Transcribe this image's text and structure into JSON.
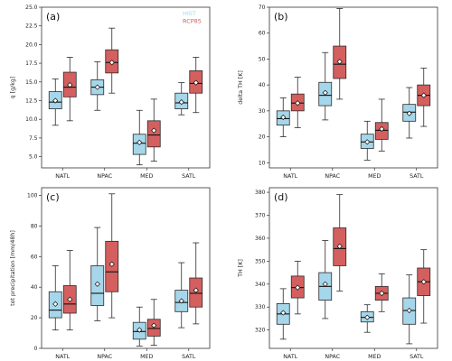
{
  "colors": {
    "hist": "#a6d6ea",
    "rcp": "#d45f5f",
    "line": "#2b2b2b"
  },
  "chart_data": [
    {
      "type": "box",
      "panel": "(a)",
      "ylabel": "q [g/kg]",
      "ylim": [
        3.5,
        25
      ],
      "yticks": [
        5.0,
        7.5,
        10.0,
        12.5,
        15.0,
        17.5,
        20.0,
        22.5,
        25.0
      ],
      "tick_decimals": 1,
      "categories": [
        "NATL",
        "NPAC",
        "MED",
        "SATL"
      ],
      "legend": [
        {
          "name": "HIST"
        },
        {
          "name": "RCP85"
        }
      ],
      "series": [
        {
          "name": "HIST",
          "color_key": "hist",
          "boxes": [
            {
              "whislo": 9.2,
              "q1": 11.4,
              "med": 12.3,
              "q3": 13.7,
              "whishi": 15.4,
              "mean": 12.5
            },
            {
              "whislo": 11.2,
              "q1": 13.3,
              "med": 14.3,
              "q3": 15.3,
              "whishi": 17.7,
              "mean": 14.3
            },
            {
              "whislo": 3.9,
              "q1": 5.3,
              "med": 6.8,
              "q3": 8.0,
              "whishi": 11.2,
              "mean": 6.9
            },
            {
              "whislo": 10.6,
              "q1": 11.4,
              "med": 12.2,
              "q3": 13.5,
              "whishi": 14.9,
              "mean": 12.3
            }
          ]
        },
        {
          "name": "RCP85",
          "color_key": "rcp",
          "boxes": [
            {
              "whislo": 9.8,
              "q1": 13.0,
              "med": 14.3,
              "q3": 16.3,
              "whishi": 18.3,
              "mean": 14.6
            },
            {
              "whislo": 13.5,
              "q1": 16.2,
              "med": 17.6,
              "q3": 19.3,
              "whishi": 22.2,
              "mean": 17.6
            },
            {
              "whislo": 4.4,
              "q1": 6.3,
              "med": 7.9,
              "q3": 9.8,
              "whishi": 12.7,
              "mean": 8.5
            },
            {
              "whislo": 10.9,
              "q1": 13.5,
              "med": 14.8,
              "q3": 16.5,
              "whishi": 18.3,
              "mean": 14.9
            }
          ]
        }
      ]
    },
    {
      "type": "box",
      "panel": "(b)",
      "ylabel": "delta TH [K]",
      "ylim": [
        8,
        70
      ],
      "yticks": [
        10,
        20,
        30,
        40,
        50,
        60,
        70
      ],
      "tick_decimals": 0,
      "categories": [
        "NATL",
        "NPAC",
        "MED",
        "SATL"
      ],
      "series": [
        {
          "name": "HIST",
          "color_key": "hist",
          "boxes": [
            {
              "whislo": 20.0,
              "q1": 24.5,
              "med": 27.0,
              "q3": 30.0,
              "whishi": 35.0,
              "mean": 27.5
            },
            {
              "whislo": 26.5,
              "q1": 32.0,
              "med": 36.0,
              "q3": 41.0,
              "whishi": 52.5,
              "mean": 37.0
            },
            {
              "whislo": 11.0,
              "q1": 15.5,
              "med": 18.0,
              "q3": 21.0,
              "whishi": 26.0,
              "mean": 18.0
            },
            {
              "whislo": 19.5,
              "q1": 26.0,
              "med": 29.5,
              "q3": 32.5,
              "whishi": 39.0,
              "mean": 29.0
            }
          ]
        },
        {
          "name": "RCP85",
          "color_key": "rcp",
          "boxes": [
            {
              "whislo": 23.5,
              "q1": 30.0,
              "med": 33.0,
              "q3": 36.5,
              "whishi": 43.0,
              "mean": 33.0
            },
            {
              "whislo": 34.5,
              "q1": 42.5,
              "med": 48.0,
              "q3": 55.0,
              "whishi": 69.5,
              "mean": 49.0
            },
            {
              "whislo": 14.5,
              "q1": 19.0,
              "med": 22.5,
              "q3": 25.5,
              "whishi": 34.5,
              "mean": 23.0
            },
            {
              "whislo": 24.0,
              "q1": 32.0,
              "med": 36.0,
              "q3": 40.0,
              "whishi": 46.5,
              "mean": 36.0
            }
          ]
        }
      ]
    },
    {
      "type": "box",
      "panel": "(c)",
      "ylabel": "tot precipitation [mm/48h]",
      "ylim": [
        0,
        105
      ],
      "yticks": [
        0,
        20,
        40,
        60,
        80,
        100
      ],
      "tick_decimals": 0,
      "categories": [
        "NATL",
        "NPAC",
        "MED",
        "SATL"
      ],
      "series": [
        {
          "name": "HIST",
          "color_key": "hist",
          "boxes": [
            {
              "whislo": 12.0,
              "q1": 20.0,
              "med": 25.0,
              "q3": 37.0,
              "whishi": 54.0,
              "mean": 29.0
            },
            {
              "whislo": 18.0,
              "q1": 28.0,
              "med": 36.0,
              "q3": 54.0,
              "whishi": 79.0,
              "mean": 42.0
            },
            {
              "whislo": 1.5,
              "q1": 6.0,
              "med": 11.0,
              "q3": 17.0,
              "whishi": 27.0,
              "mean": 12.0
            },
            {
              "whislo": 13.5,
              "q1": 24.0,
              "med": 30.0,
              "q3": 38.0,
              "whishi": 56.0,
              "mean": 31.0
            }
          ]
        },
        {
          "name": "RCP85",
          "color_key": "rcp",
          "boxes": [
            {
              "whislo": 12.0,
              "q1": 23.0,
              "med": 29.0,
              "q3": 41.0,
              "whishi": 64.0,
              "mean": 32.0
            },
            {
              "whislo": 20.0,
              "q1": 37.0,
              "med": 50.0,
              "q3": 70.0,
              "whishi": 101.0,
              "mean": 55.0
            },
            {
              "whislo": 2.0,
              "q1": 8.0,
              "med": 13.0,
              "q3": 19.0,
              "whishi": 32.0,
              "mean": 15.0
            },
            {
              "whislo": 16.0,
              "q1": 27.0,
              "med": 36.0,
              "q3": 46.0,
              "whishi": 69.0,
              "mean": 38.0
            }
          ]
        }
      ]
    },
    {
      "type": "box",
      "panel": "(d)",
      "ylabel": "TH [K]",
      "ylim": [
        312,
        382
      ],
      "yticks": [
        320,
        330,
        340,
        350,
        360,
        370,
        380
      ],
      "tick_decimals": 0,
      "categories": [
        "NATL",
        "NPAC",
        "MED",
        "SATL"
      ],
      "series": [
        {
          "name": "HIST",
          "color_key": "hist",
          "boxes": [
            {
              "whislo": 316.0,
              "q1": 322.5,
              "med": 327.0,
              "q3": 331.5,
              "whishi": 338.0,
              "mean": 327.5
            },
            {
              "whislo": 325.0,
              "q1": 333.0,
              "med": 339.0,
              "q3": 345.0,
              "whishi": 359.0,
              "mean": 340.0
            },
            {
              "whislo": 319.0,
              "q1": 323.5,
              "med": 325.5,
              "q3": 328.0,
              "whishi": 331.0,
              "mean": 325.5
            },
            {
              "whislo": 314.0,
              "q1": 322.5,
              "med": 328.5,
              "q3": 334.0,
              "whishi": 344.0,
              "mean": 328.5
            }
          ]
        },
        {
          "name": "RCP85",
          "color_key": "rcp",
          "boxes": [
            {
              "whislo": 327.0,
              "q1": 334.0,
              "med": 338.5,
              "q3": 343.5,
              "whishi": 350.0,
              "mean": 338.5
            },
            {
              "whislo": 337.0,
              "q1": 348.0,
              "med": 355.5,
              "q3": 364.5,
              "whishi": 379.0,
              "mean": 356.5
            },
            {
              "whislo": 328.0,
              "q1": 333.0,
              "med": 336.0,
              "q3": 339.0,
              "whishi": 344.5,
              "mean": 336.0
            },
            {
              "whislo": 323.0,
              "q1": 335.0,
              "med": 341.0,
              "q3": 347.0,
              "whishi": 355.0,
              "mean": 341.0
            }
          ]
        }
      ]
    }
  ]
}
